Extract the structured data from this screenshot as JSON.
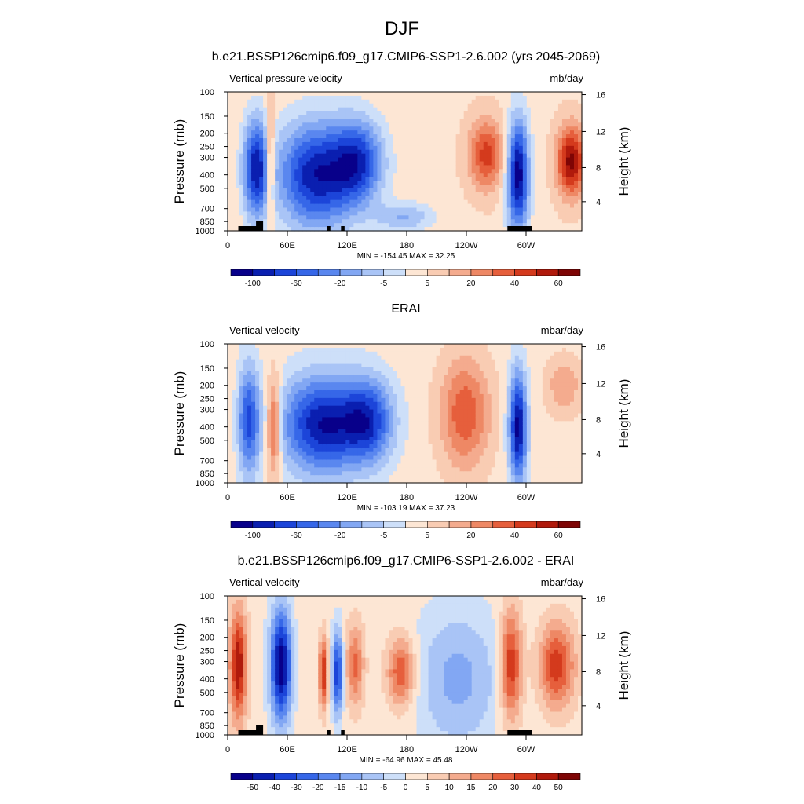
{
  "figure": {
    "title": "DJF"
  },
  "chart_data": [
    {
      "type": "heatmap",
      "title": "b.e21.BSSP126cmip6.f09_g17.CMIP6-SSP1-2.6.002 (yrs 2045-2069)",
      "left_label": "Vertical pressure velocity",
      "units": "mb/day",
      "ylabel": "Pressure (mb)",
      "ylabel_right": "Height (km)",
      "y_ticks": [
        "100",
        "150",
        "200",
        "250",
        "300",
        "400",
        "500",
        "700",
        "850",
        "1000"
      ],
      "y_right_ticks": [
        "16",
        "12",
        "8",
        "4"
      ],
      "x_ticks": [
        "0",
        "60E",
        "120E",
        "180",
        "120W",
        "60W"
      ],
      "stats": "MIN = -154.45   MAX =  32.25",
      "colorbar_labels": [
        "-100",
        "-60",
        "-20",
        "-5",
        "5",
        "20",
        "40",
        "60"
      ],
      "ylim": [
        1000,
        100
      ],
      "xlim": [
        0,
        360
      ]
    },
    {
      "type": "heatmap",
      "title": "ERAI",
      "left_label": "Vertical velocity",
      "units": "mbar/day",
      "ylabel": "Pressure (mb)",
      "ylabel_right": "Height (km)",
      "y_ticks": [
        "100",
        "150",
        "200",
        "250",
        "300",
        "400",
        "500",
        "700",
        "850",
        "1000"
      ],
      "y_right_ticks": [
        "16",
        "12",
        "8",
        "4"
      ],
      "x_ticks": [
        "0",
        "60E",
        "120E",
        "180",
        "120W",
        "60W"
      ],
      "stats": "MIN = -103.19   MAX =  37.23",
      "colorbar_labels": [
        "-100",
        "-60",
        "-20",
        "-5",
        "5",
        "20",
        "40",
        "60"
      ],
      "ylim": [
        1000,
        100
      ],
      "xlim": [
        0,
        360
      ]
    },
    {
      "type": "heatmap",
      "title": "b.e21.BSSP126cmip6.f09_g17.CMIP6-SSP1-2.6.002 - ERAI",
      "left_label": "Vertical velocity",
      "units": "mbar/day",
      "ylabel": "Pressure (mb)",
      "ylabel_right": "Height (km)",
      "y_ticks": [
        "100",
        "150",
        "200",
        "250",
        "300",
        "400",
        "500",
        "700",
        "850",
        "1000"
      ],
      "y_right_ticks": [
        "16",
        "12",
        "8",
        "4"
      ],
      "x_ticks": [
        "0",
        "60E",
        "120E",
        "180",
        "120W",
        "60W"
      ],
      "stats": "MIN = -64.96   MAX =  45.48",
      "colorbar_labels": [
        "-50",
        "-40",
        "-30",
        "-20",
        "-15",
        "-10",
        "-5",
        "0",
        "5",
        "10",
        "15",
        "20",
        "30",
        "40",
        "50"
      ],
      "ylim": [
        1000,
        100
      ],
      "xlim": [
        0,
        360
      ]
    }
  ]
}
